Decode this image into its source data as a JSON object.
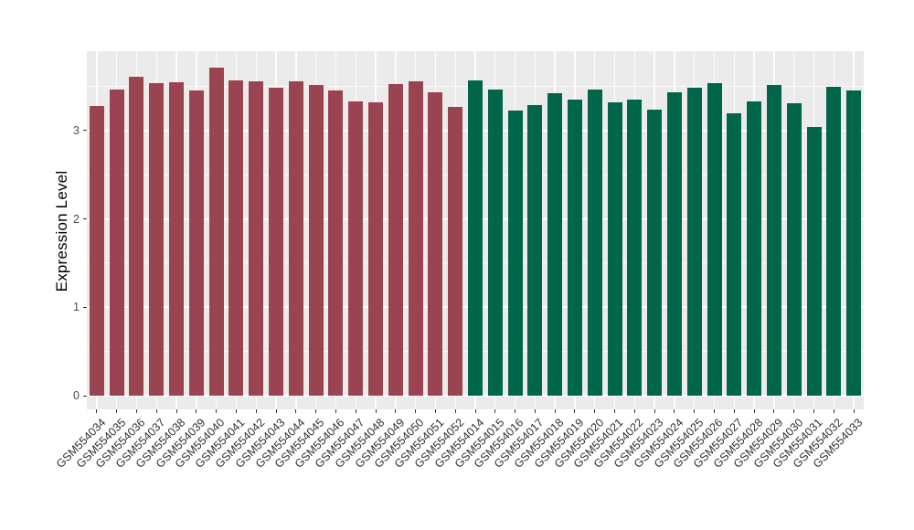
{
  "chart_data": {
    "type": "bar",
    "title": "",
    "xlabel": "",
    "ylabel": "Expression Level",
    "ylim": [
      0,
      3.9
    ],
    "yticks": [
      0,
      1,
      2,
      3
    ],
    "grid": "white major and minor gridlines on grey panel",
    "legend": "none",
    "panel_bg": "#EBEBEB",
    "grid_color": "#FFFFFF",
    "tick_label_color": "#4D4D4D",
    "series": [
      {
        "name": "group-red",
        "color": "#9A4452",
        "categories": [
          "GSM554034",
          "GSM554035",
          "GSM554036",
          "GSM554037",
          "GSM554038",
          "GSM554039",
          "GSM554040",
          "GSM554041",
          "GSM554042",
          "GSM554043",
          "GSM554044",
          "GSM554045",
          "GSM554046",
          "GSM554047",
          "GSM554048",
          "GSM554049",
          "GSM554050",
          "GSM554051",
          "GSM554052"
        ],
        "values": [
          3.28,
          3.47,
          3.61,
          3.54,
          3.55,
          3.46,
          3.71,
          3.57,
          3.56,
          3.49,
          3.56,
          3.52,
          3.45,
          3.33,
          3.32,
          3.53,
          3.56,
          3.43,
          3.27
        ]
      },
      {
        "name": "group-green",
        "color": "#006649",
        "categories": [
          "GSM554014",
          "GSM554015",
          "GSM554016",
          "GSM554017",
          "GSM554018",
          "GSM554019",
          "GSM554020",
          "GSM554021",
          "GSM554022",
          "GSM554023",
          "GSM554024",
          "GSM554025",
          "GSM554026",
          "GSM554027",
          "GSM554028",
          "GSM554029",
          "GSM554030",
          "GSM554031",
          "GSM554032",
          "GSM554033"
        ],
        "values": [
          3.57,
          3.47,
          3.23,
          3.29,
          3.42,
          3.35,
          3.47,
          3.32,
          3.35,
          3.24,
          3.43,
          3.49,
          3.54,
          3.2,
          3.33,
          3.52,
          3.31,
          3.04,
          3.5,
          3.45
        ]
      }
    ]
  }
}
